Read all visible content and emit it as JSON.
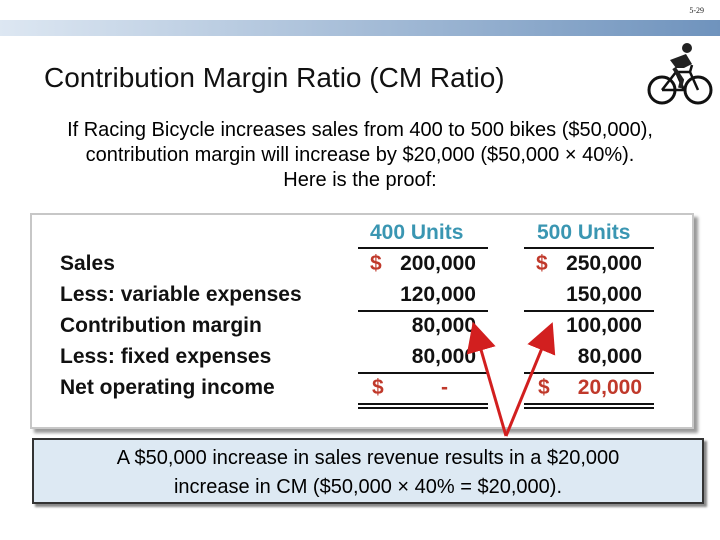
{
  "slide_number": "5-29",
  "title": "Contribution Margin Ratio (CM Ratio)",
  "intro_lines": [
    "If Racing Bicycle increases sales from 400 to 500 bikes ($50,000),",
    "contribution margin will increase by $20,000 ($50,000 × 40%).",
    "Here is the proof:"
  ],
  "table": {
    "headers": [
      "400 Units",
      "500 Units"
    ],
    "rows": [
      {
        "label": "Sales",
        "col1_currency": "$",
        "col1": "200,000",
        "col2_currency": "$",
        "col2": "250,000"
      },
      {
        "label": "Less: variable expenses",
        "col1": "120,000",
        "col2": "150,000"
      },
      {
        "label": "Contribution margin",
        "col1": "80,000",
        "col2": "100,000"
      },
      {
        "label": "Less: fixed expenses",
        "col1": "80,000",
        "col2": "80,000"
      },
      {
        "label": "Net operating income",
        "col1_currency": "$",
        "col1": "-",
        "col2_currency": "$",
        "col2": "20,000"
      }
    ]
  },
  "callout_lines": [
    "A $50,000 increase in sales revenue results in a $20,000",
    "increase in CM ($50,000 × 40% = $20,000)."
  ],
  "colors": {
    "header": "#3a96b2",
    "currency": "#c0392b",
    "arrow": "#d21f1f",
    "callout_bg": "#dde9f3"
  },
  "icons": [
    "cyclist-icon"
  ]
}
